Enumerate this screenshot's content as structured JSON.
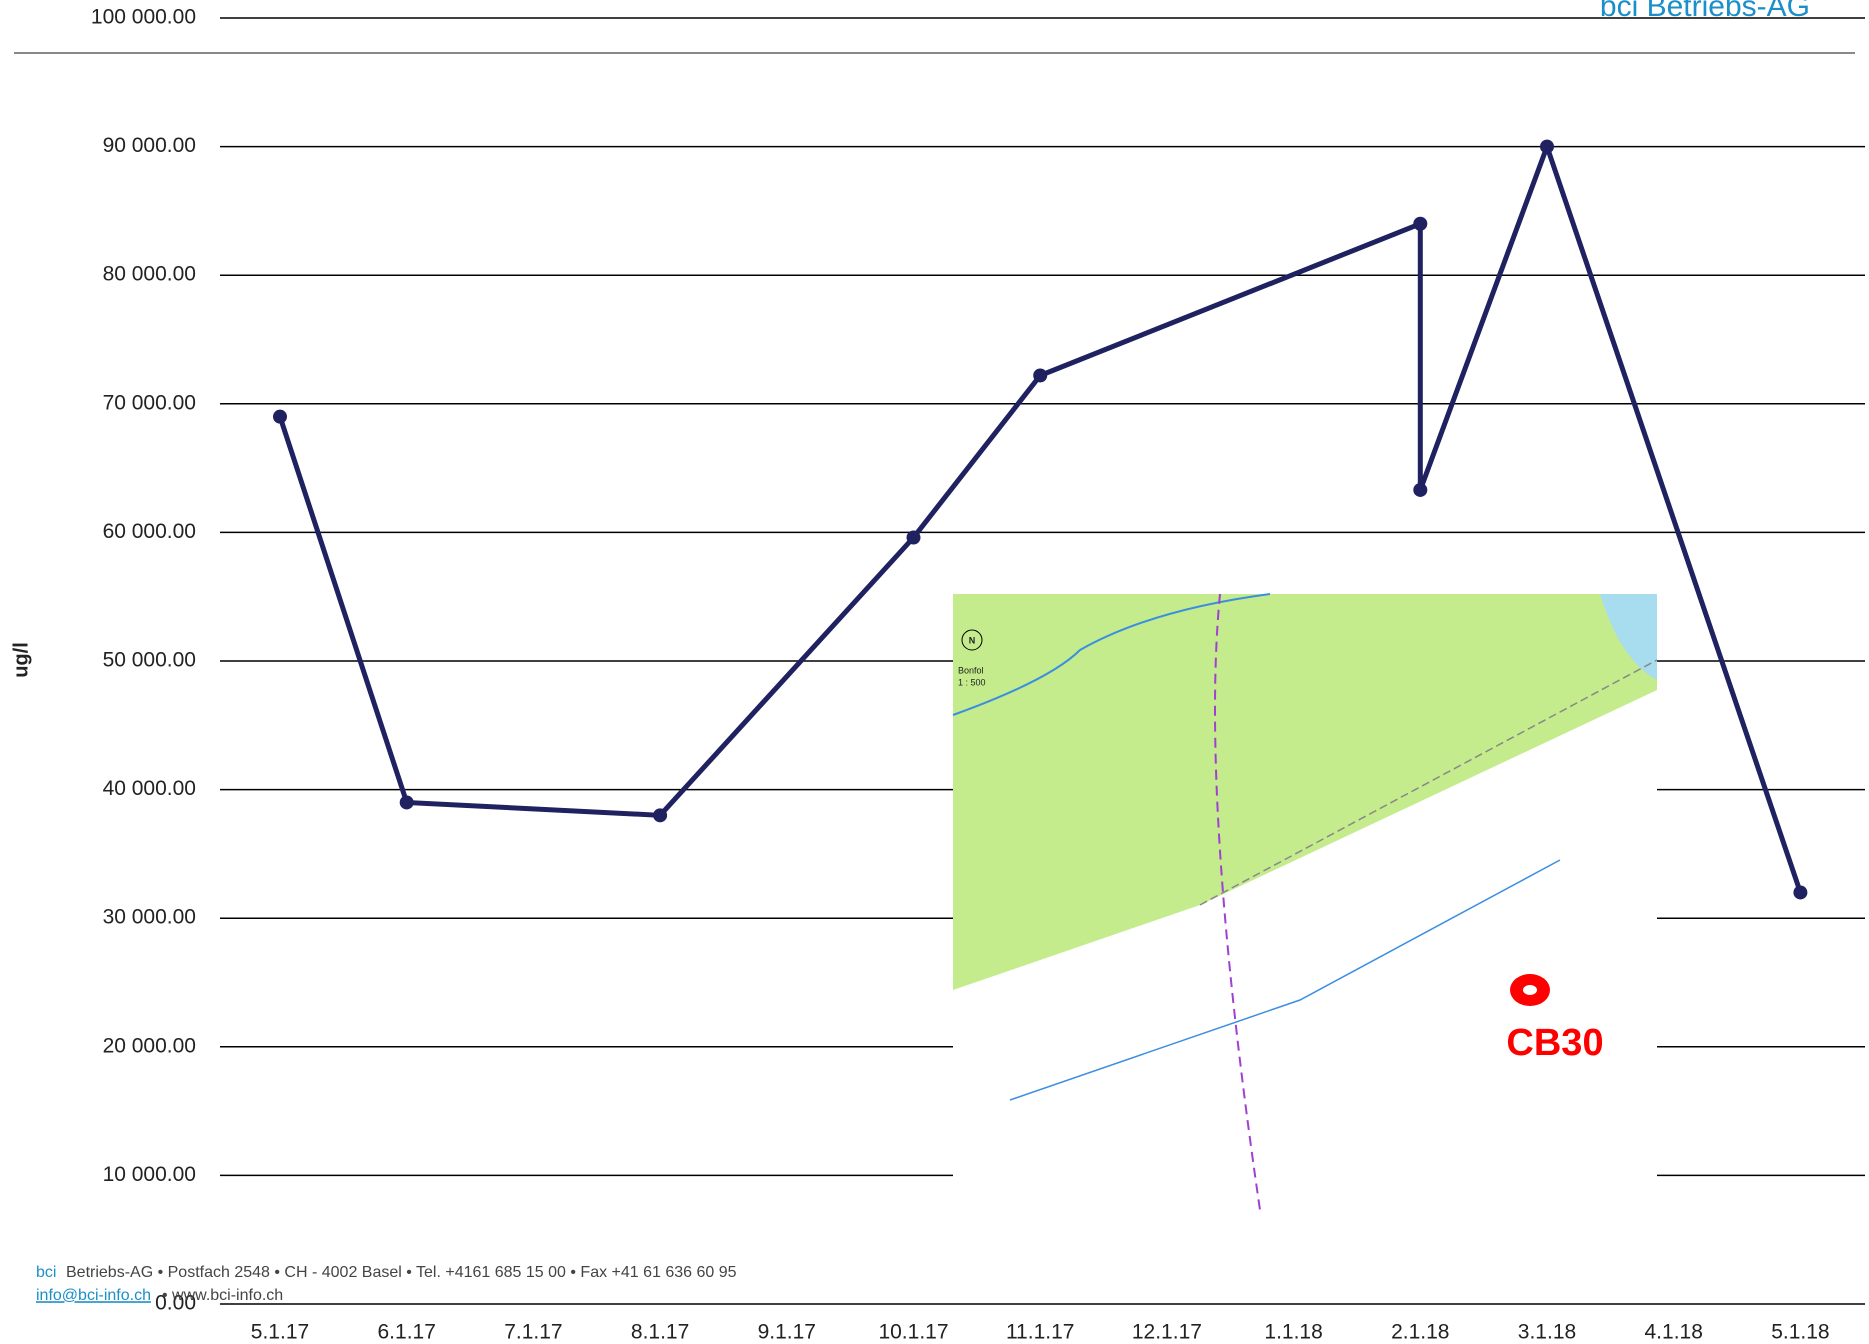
{
  "chart_data": {
    "type": "line",
    "header": "bci Betriebs-AG",
    "y_label": "ug/l",
    "categories": [
      "5.1.17",
      "6.1.17",
      "7.1.17",
      "8.1.17",
      "9.1.17",
      "10.1.17",
      "11.1.17",
      "12.1.17",
      "1.1.18",
      "2.1.18",
      "3.1.18",
      "4.1.18",
      "5.1.18"
    ],
    "series": [
      {
        "color": "#1f2160",
        "x": [
          "5.1.17",
          "6.1.17",
          "8.1.17",
          "10.1.17",
          "11.1.17",
          "2.1.18",
          "2.1.18",
          "3.1.18",
          "5.1.18"
        ],
        "values": [
          69000,
          39000,
          38000,
          59600,
          72200,
          84000,
          63300,
          90000,
          32000
        ]
      }
    ],
    "ylim": [
      0,
      100000
    ],
    "yticks": [
      {
        "value": 0,
        "label": "0.00"
      },
      {
        "value": 10000,
        "label": "10 000.00"
      },
      {
        "value": 20000,
        "label": "20 000.00"
      },
      {
        "value": 30000,
        "label": "30 000.00"
      },
      {
        "value": 40000,
        "label": "40 000.00"
      },
      {
        "value": 50000,
        "label": "50 000.00"
      },
      {
        "value": 60000,
        "label": "60 000.00"
      },
      {
        "value": 70000,
        "label": "70 000.00"
      },
      {
        "value": 80000,
        "label": "80 000.00"
      },
      {
        "value": 90000,
        "label": "90 000.00"
      },
      {
        "value": 100000,
        "label": "100 000.00"
      }
    ],
    "grid": true,
    "map": {
      "label": "CB30",
      "place": "Bonfol",
      "scale": "1 : 500",
      "north": "N"
    },
    "footer": {
      "brand": "bci",
      "line1": "Betriebs-AG • Postfach 2548 • CH - 4002 Basel • Tel. +4161 685 15 00 • Fax +41 61 636 60 95",
      "email": "info@bci-info.ch",
      "line2": "• www.bci-info.ch"
    }
  }
}
